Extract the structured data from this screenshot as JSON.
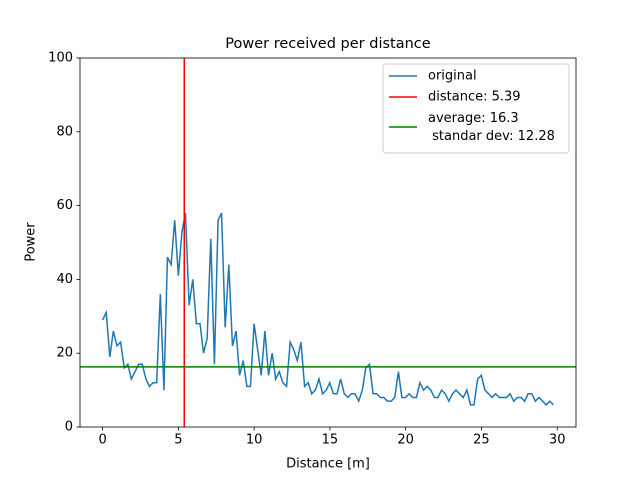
{
  "chart_data": {
    "type": "line",
    "title": "Power received per distance",
    "xlabel": "Distance [m]",
    "ylabel": "Power",
    "x": [
      0,
      0.24,
      0.48,
      0.71,
      0.95,
      1.19,
      1.43,
      1.67,
      1.9,
      2.14,
      2.38,
      2.62,
      2.86,
      3.09,
      3.33,
      3.57,
      3.81,
      4.05,
      4.28,
      4.52,
      4.76,
      5.0,
      5.24,
      5.47,
      5.71,
      5.95,
      6.19,
      6.43,
      6.66,
      6.9,
      7.14,
      7.38,
      7.62,
      7.85,
      8.09,
      8.33,
      8.57,
      8.81,
      9.04,
      9.28,
      9.52,
      9.76,
      10.0,
      10.23,
      10.47,
      10.71,
      10.95,
      11.19,
      11.42,
      11.66,
      11.9,
      12.14,
      12.38,
      12.61,
      12.85,
      13.09,
      13.33,
      13.57,
      13.8,
      14.04,
      14.28,
      14.52,
      14.76,
      14.99,
      15.23,
      15.47,
      15.71,
      15.95,
      16.18,
      16.42,
      16.66,
      16.9,
      17.14,
      17.37,
      17.61,
      17.85,
      18.09,
      18.33,
      18.56,
      18.8,
      19.04,
      19.28,
      19.52,
      19.75,
      19.99,
      20.23,
      20.47,
      20.71,
      20.94,
      21.18,
      21.42,
      21.66,
      21.9,
      22.13,
      22.37,
      22.61,
      22.85,
      23.09,
      23.32,
      23.56,
      23.8,
      24.04,
      24.28,
      24.51,
      24.75,
      24.99,
      25.23,
      25.47,
      25.7,
      25.94,
      26.18,
      26.42,
      26.66,
      26.89,
      27.13,
      27.37,
      27.61,
      27.85,
      28.08,
      28.32,
      28.56,
      28.8,
      29.04,
      29.27,
      29.51,
      29.75
    ],
    "series": [
      {
        "name": "original",
        "color": "#1f77b4",
        "values": [
          29,
          31,
          19,
          26,
          22,
          23,
          16,
          17,
          13,
          15,
          17,
          17,
          13,
          11,
          12,
          12,
          36,
          10,
          46,
          44,
          56,
          41,
          53,
          58,
          33,
          40,
          28,
          28,
          20,
          24,
          51,
          17,
          56,
          58,
          27,
          44,
          22,
          26,
          14,
          18,
          11,
          11,
          28,
          21,
          14,
          26,
          14,
          20,
          13,
          15,
          12,
          11,
          23,
          21,
          18,
          23,
          11,
          12,
          9,
          10,
          13,
          9,
          10,
          12,
          9,
          9,
          13,
          9,
          8,
          9,
          9,
          7,
          10,
          16,
          17,
          9,
          9,
          8,
          8,
          7,
          7,
          8,
          15,
          8,
          8,
          9,
          8,
          8,
          12,
          10,
          11,
          10,
          8,
          8,
          10,
          9,
          7,
          9,
          10,
          9,
          8,
          10,
          6,
          6,
          13,
          14,
          10,
          9,
          8,
          9,
          8,
          8,
          8,
          9,
          7,
          8,
          8,
          7,
          9,
          9,
          7,
          8,
          7,
          6,
          7,
          6
        ]
      }
    ],
    "vlines": [
      {
        "name": "distance: 5.39",
        "color": "#ff0000",
        "x": 5.39
      }
    ],
    "hlines": [
      {
        "name": "average: 16.3\n standar dev: 12.28",
        "color": "#008000",
        "y": 16.3
      }
    ],
    "xlim": [
      -1.49,
      31.24
    ],
    "xticks": [
      0,
      5,
      10,
      15,
      20,
      25,
      30
    ],
    "ylim": [
      0,
      100
    ],
    "yticks": [
      0,
      20,
      40,
      60,
      80,
      100
    ],
    "legend": "upper right"
  }
}
